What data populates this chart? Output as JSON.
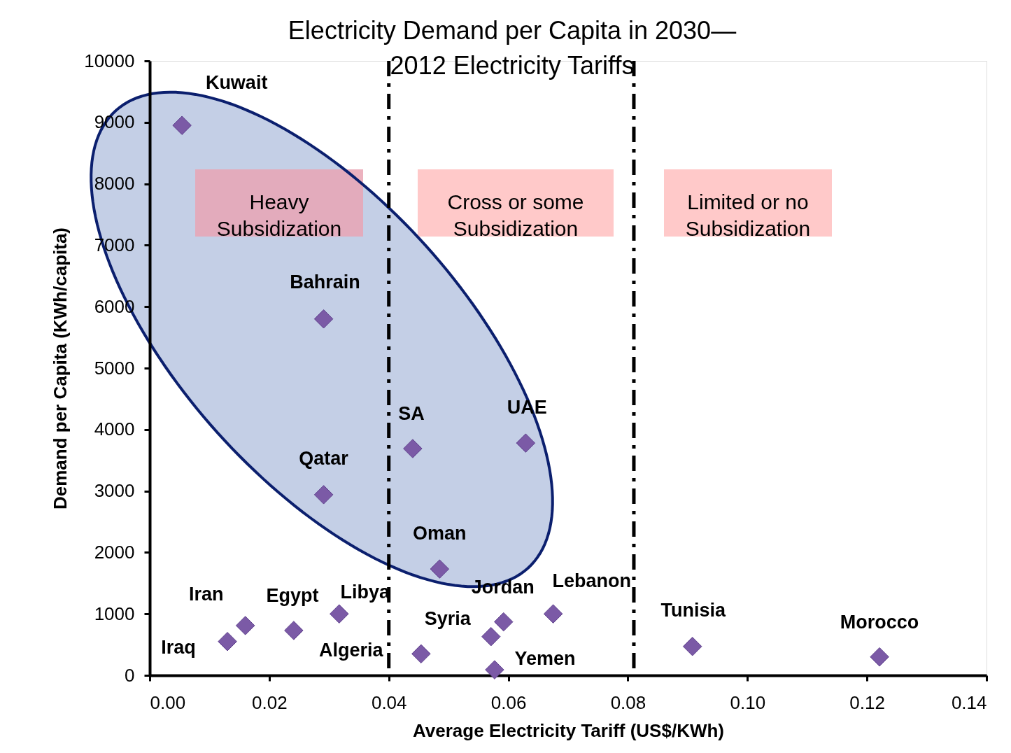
{
  "chart_data": {
    "type": "scatter",
    "title": "Electricity Demand per Capita in 2030—\n2012 Electricity Tariffs",
    "xlabel": "Average Electricity  Tariff  (US$/KWh)",
    "ylabel": "Demand per Capita  (KWh/capita)",
    "x": [
      0.0054,
      0.0291,
      0.0291,
      0.044,
      0.0629,
      0.0485,
      0.016,
      0.013,
      0.0241,
      0.0317,
      0.0454,
      0.0571,
      0.0592,
      0.0577,
      0.0675,
      0.0908,
      0.1221
    ],
    "series": [
      {
        "color": "#7b5aa6",
        "values": [
          8950,
          5800,
          2940,
          3690,
          3780,
          1730,
          810,
          550,
          730,
          1000,
          350,
          630,
          870,
          90,
          1000,
          470,
          300
        ]
      }
    ],
    "marker": "diamond",
    "xlim": [
      0,
      0.14
    ],
    "xticks": [
      {
        "value": 0,
        "label": "0.00"
      },
      {
        "value": 0.02,
        "label": "0.02"
      },
      {
        "value": 0.04,
        "label": "0.04"
      },
      {
        "value": 0.06,
        "label": "0.06"
      },
      {
        "value": 0.08,
        "label": "0.08"
      },
      {
        "value": 0.1,
        "label": "0.10"
      },
      {
        "value": 0.12,
        "label": "0.12"
      },
      {
        "value": 0.14,
        "label": "0.14"
      }
    ],
    "ylim": [
      0,
      10000
    ],
    "yticks": [
      0,
      1000,
      2000,
      3000,
      4000,
      5000,
      6000,
      7000,
      8000,
      9000,
      10000
    ],
    "ref_lines": [
      {
        "axis": "x",
        "value": 0.04,
        "line_style": "dashed",
        "color": "#000000"
      },
      {
        "axis": "x",
        "value": 0.081,
        "line_style": "dashed",
        "color": "#000000"
      }
    ],
    "annotations": [
      "Heavy\nSubsidization",
      "Cross or some\nSubsidization",
      "Limited or no\nSubsidization",
      {
        "text": "Kuwait",
        "x": 0.0054,
        "y": 8950
      },
      {
        "text": "Bahrain",
        "x": 0.0291,
        "y": 5800
      },
      {
        "text": "Qatar",
        "x": 0.0291,
        "y": 2940
      },
      {
        "text": "SA",
        "x": 0.044,
        "y": 3690
      },
      {
        "text": "UAE",
        "x": 0.0629,
        "y": 3780
      },
      {
        "text": "Oman",
        "x": 0.0485,
        "y": 1730
      },
      {
        "text": "Iran",
        "x": 0.016,
        "y": 810
      },
      {
        "text": "Iraq",
        "x": 0.013,
        "y": 550
      },
      {
        "text": "Egypt",
        "x": 0.0241,
        "y": 730
      },
      {
        "text": "Libya",
        "x": 0.0317,
        "y": 1000
      },
      {
        "text": "Algeria",
        "x": 0.0454,
        "y": 350
      },
      {
        "text": "Syria",
        "x": 0.0571,
        "y": 630
      },
      {
        "text": "Jordan",
        "x": 0.0592,
        "y": 870
      },
      {
        "text": "Yemen",
        "x": 0.0577,
        "y": 90
      },
      {
        "text": "Lebanon",
        "x": 0.0675,
        "y": 1000
      },
      {
        "text": "Tunisia",
        "x": 0.0908,
        "y": 470
      },
      {
        "text": "Morocco",
        "x": 0.1221,
        "y": 300
      }
    ],
    "grid": false
  }
}
